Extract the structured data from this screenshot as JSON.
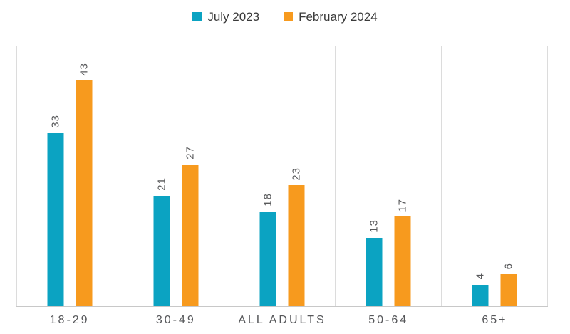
{
  "legend": {
    "items": [
      {
        "label": "July 2023",
        "color": "#0ba3c2"
      },
      {
        "label": "February 2024",
        "color": "#f79a1e"
      }
    ]
  },
  "chart_data": {
    "type": "bar",
    "title": "",
    "xlabel": "",
    "ylabel": "",
    "categories": [
      "18-29",
      "30-49",
      "ALL ADULTS",
      "50-64",
      "65+"
    ],
    "series": [
      {
        "name": "July 2023",
        "color": "#0ba3c2",
        "values": [
          33,
          21,
          18,
          13,
          4
        ]
      },
      {
        "name": "February 2024",
        "color": "#f79a1e",
        "values": [
          43,
          27,
          23,
          17,
          6
        ]
      }
    ],
    "ylim": [
      0,
      50
    ],
    "grid": "vertical panel dividers only",
    "legend_position": "top-center",
    "value_label_style": "rotated 90 degrees counterclockwise above each bar"
  },
  "colors": {
    "axis_line": "#c8c8c8",
    "panel_divider": "#dcdcdc",
    "label_text": "#58595b",
    "legend_text": "#3a3a3a",
    "background": "#ffffff"
  }
}
